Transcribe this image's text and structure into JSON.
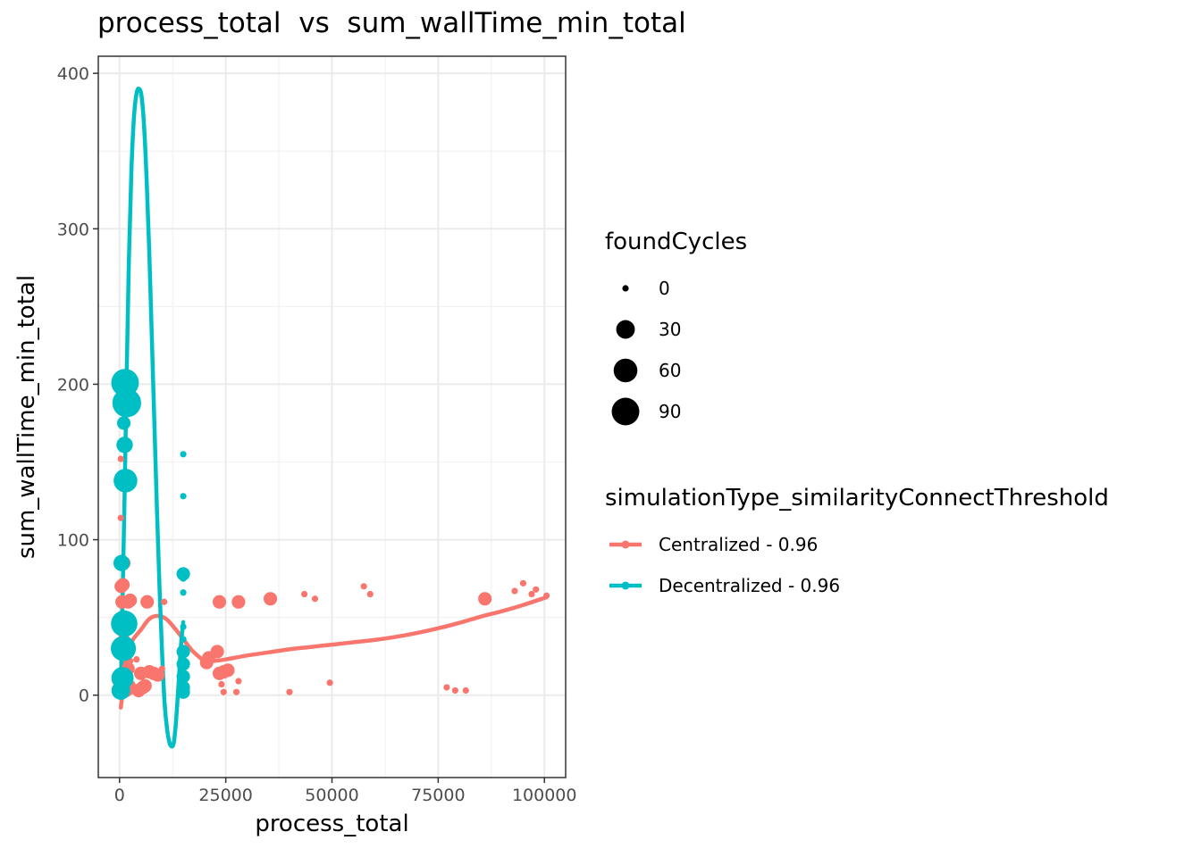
{
  "chart_data": {
    "type": "scatter",
    "title": "process_total  vs  sum_wallTime_min_total",
    "xlabel": "process_total",
    "ylabel": "sum_wallTime_min_total",
    "xlim": [
      -5000,
      105000
    ],
    "ylim": [
      -53,
      411
    ],
    "x_ticks": [
      0,
      25000,
      50000,
      75000,
      100000
    ],
    "x_tick_labels": [
      "0",
      "25000",
      "50000",
      "75000",
      "100000"
    ],
    "y_ticks": [
      0,
      100,
      200,
      300,
      400
    ],
    "y_tick_labels": [
      "0",
      "100",
      "200",
      "300",
      "400"
    ],
    "grid": true,
    "legend_position": "right",
    "size_legend": {
      "title": "foundCycles",
      "entries": [
        {
          "label": "0",
          "value": 0
        },
        {
          "label": "30",
          "value": 30
        },
        {
          "label": "60",
          "value": 60
        },
        {
          "label": "90",
          "value": 90
        }
      ]
    },
    "color_legend": {
      "title": "simulationType_similarityConnectThreshold"
    },
    "series": [
      {
        "name": "Centralized - 0.96",
        "color": "#F8766D",
        "points": [
          [
            300,
            152,
            0
          ],
          [
            300,
            114,
            0
          ],
          [
            400,
            70,
            10
          ],
          [
            600,
            60,
            10
          ],
          [
            800,
            71,
            10
          ],
          [
            1000,
            85,
            10
          ],
          [
            1000,
            35,
            10
          ],
          [
            1500,
            30,
            10
          ],
          [
            2000,
            60,
            10
          ],
          [
            2500,
            61,
            10
          ],
          [
            3000,
            60,
            0
          ],
          [
            1500,
            3,
            10
          ],
          [
            2000,
            5,
            10
          ],
          [
            2500,
            2,
            0
          ],
          [
            1000,
            45,
            10
          ],
          [
            1500,
            28,
            10
          ],
          [
            2000,
            17,
            10
          ],
          [
            2500,
            22,
            0
          ],
          [
            3000,
            7,
            0
          ],
          [
            4000,
            23,
            0
          ],
          [
            4500,
            3,
            10
          ],
          [
            5000,
            14,
            10
          ],
          [
            5500,
            5,
            10
          ],
          [
            6000,
            6,
            10
          ],
          [
            6500,
            60,
            10
          ],
          [
            7000,
            15,
            10
          ],
          [
            8000,
            14,
            10
          ],
          [
            9000,
            13,
            10
          ],
          [
            10000,
            17,
            0
          ],
          [
            10500,
            60,
            0
          ],
          [
            20500,
            21,
            10
          ],
          [
            21000,
            24,
            10
          ],
          [
            23000,
            28,
            10
          ],
          [
            23500,
            14,
            10
          ],
          [
            23500,
            60,
            10
          ],
          [
            24000,
            7,
            0
          ],
          [
            24500,
            2,
            0
          ],
          [
            24500,
            15,
            10
          ],
          [
            25500,
            16,
            10
          ],
          [
            27500,
            2,
            0
          ],
          [
            28000,
            60,
            10
          ],
          [
            28000,
            9,
            0
          ],
          [
            35500,
            62,
            10
          ],
          [
            40000,
            2,
            0
          ],
          [
            43500,
            65,
            0
          ],
          [
            46000,
            62,
            0
          ],
          [
            49500,
            8,
            0
          ],
          [
            57500,
            70,
            0
          ],
          [
            59000,
            65,
            0
          ],
          [
            77000,
            5,
            0
          ],
          [
            79000,
            3,
            0
          ],
          [
            81500,
            3,
            0
          ],
          [
            86000,
            62,
            10
          ],
          [
            93000,
            67,
            0
          ],
          [
            95000,
            72,
            0
          ],
          [
            97000,
            65,
            0
          ],
          [
            98000,
            68,
            0
          ],
          [
            100500,
            64,
            0
          ]
        ],
        "trend": [
          [
            300,
            -8
          ],
          [
            1000,
            8
          ],
          [
            1500,
            25
          ],
          [
            3000,
            35
          ],
          [
            5000,
            42
          ],
          [
            7000,
            49
          ],
          [
            9000,
            51
          ],
          [
            11000,
            49
          ],
          [
            13000,
            43
          ],
          [
            15000,
            36
          ],
          [
            17000,
            29
          ],
          [
            19000,
            24
          ],
          [
            20000,
            22
          ],
          [
            22000,
            22
          ],
          [
            25000,
            23
          ],
          [
            30000,
            25.5
          ],
          [
            35000,
            27.5
          ],
          [
            40000,
            29.5
          ],
          [
            45000,
            31
          ],
          [
            50000,
            32.5
          ],
          [
            55000,
            34
          ],
          [
            60000,
            35.5
          ],
          [
            65000,
            37.5
          ],
          [
            70000,
            40
          ],
          [
            75000,
            43
          ],
          [
            80000,
            46.5
          ],
          [
            85000,
            50.5
          ],
          [
            90000,
            54
          ],
          [
            95000,
            58
          ],
          [
            100500,
            63
          ]
        ]
      },
      {
        "name": "Decentralized - 0.96",
        "color": "#00BFC4",
        "points": [
          [
            1300,
            201,
            90
          ],
          [
            1700,
            188,
            100
          ],
          [
            1000,
            175,
            10
          ],
          [
            1200,
            161,
            20
          ],
          [
            1400,
            138,
            60
          ],
          [
            500,
            85,
            20
          ],
          [
            700,
            50,
            10
          ],
          [
            1100,
            46,
            80
          ],
          [
            900,
            30,
            70
          ],
          [
            700,
            11,
            50
          ],
          [
            300,
            3,
            30
          ],
          [
            15000,
            155,
            0
          ],
          [
            15000,
            128,
            0
          ],
          [
            15000,
            78,
            10
          ],
          [
            15000,
            75,
            0
          ],
          [
            15000,
            66,
            0
          ],
          [
            15000,
            44,
            0
          ],
          [
            15000,
            36,
            0
          ],
          [
            15000,
            28,
            10
          ],
          [
            15000,
            20,
            10
          ],
          [
            15000,
            12,
            10
          ],
          [
            15000,
            5,
            10
          ],
          [
            15000,
            2,
            10
          ]
        ],
        "trend": [
          [
            300,
            0
          ],
          [
            700,
            60
          ],
          [
            1200,
            130
          ],
          [
            1700,
            210
          ],
          [
            2200,
            280
          ],
          [
            2800,
            338
          ],
          [
            3400,
            372
          ],
          [
            4000,
            387
          ],
          [
            4600,
            390
          ],
          [
            5200,
            385
          ],
          [
            5800,
            365
          ],
          [
            6400,
            330
          ],
          [
            7000,
            285
          ],
          [
            7600,
            230
          ],
          [
            8200,
            175
          ],
          [
            8800,
            120
          ],
          [
            9400,
            70
          ],
          [
            10000,
            28
          ],
          [
            10600,
            -5
          ],
          [
            11200,
            -22
          ],
          [
            11800,
            -31
          ],
          [
            12400,
            -33
          ],
          [
            12800,
            -30
          ],
          [
            13200,
            -20
          ],
          [
            13600,
            -5
          ],
          [
            14000,
            12
          ],
          [
            14400,
            30
          ],
          [
            14800,
            42
          ],
          [
            15000,
            47
          ]
        ]
      }
    ]
  }
}
